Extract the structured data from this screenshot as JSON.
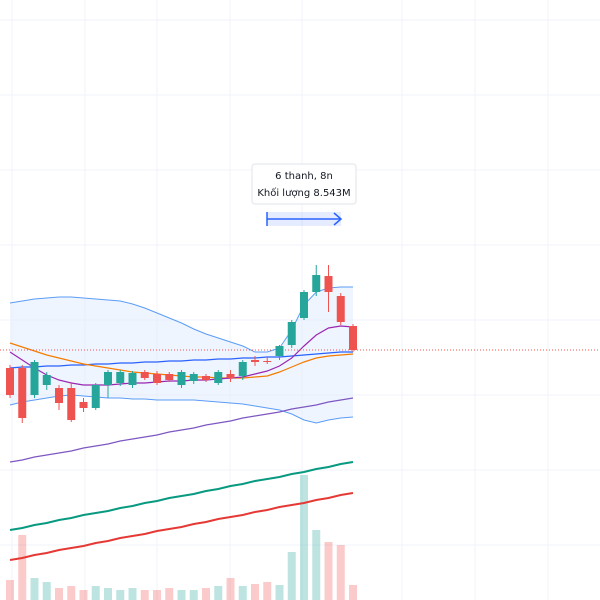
{
  "chart_data": {
    "type": "candlestick",
    "ylim": [
      0,
      600
    ],
    "up_color": "#26a69a",
    "down_color": "#ef5350",
    "open": [
      232,
      232,
      205,
      215,
      212,
      212,
      198,
      192,
      215,
      217,
      215,
      228,
      226,
      226,
      215,
      219,
      224,
      217,
      226,
      224,
      240,
      239,
      244,
      255,
      282,
      308,
      324,
      304,
      274
    ],
    "high": [
      235,
      235,
      240,
      228,
      215,
      218,
      202,
      217,
      230,
      230,
      229,
      230,
      229,
      228,
      230,
      228,
      226,
      230,
      230,
      240,
      244,
      243,
      255,
      280,
      310,
      335,
      335,
      307,
      276
    ],
    "low": [
      202,
      177,
      202,
      210,
      190,
      178,
      188,
      190,
      202,
      214,
      212,
      220,
      215,
      218,
      212,
      216,
      218,
      215,
      218,
      220,
      234,
      236,
      240,
      252,
      280,
      304,
      288,
      275,
      248
    ],
    "close": [
      205,
      182,
      238,
      225,
      197,
      180,
      192,
      215,
      228,
      228,
      227,
      222,
      217,
      220,
      228,
      226,
      220,
      228,
      222,
      238,
      238,
      238,
      254,
      278,
      308,
      325,
      308,
      278,
      250
    ],
    "bands": {
      "color": "#5b9cf6",
      "fill": "#e3efff",
      "upper": [
        297,
        299,
        301,
        302,
        303,
        303,
        302,
        301,
        300,
        299,
        296,
        292,
        287,
        282,
        277,
        271,
        266,
        262,
        258,
        254,
        248,
        248,
        252,
        270,
        295,
        308,
        312,
        313,
        313
      ],
      "lower": [
        195,
        198,
        200,
        202,
        204,
        205,
        204,
        203,
        202,
        202,
        201,
        201,
        200,
        200,
        200,
        200,
        199,
        198,
        197,
        196,
        194,
        192,
        190,
        186,
        180,
        177,
        180,
        182,
        183
      ]
    },
    "lines": [
      {
        "color": "#2962ff",
        "values": [
          232,
          233,
          233,
          234,
          234,
          235,
          235,
          236,
          236,
          237,
          237,
          238,
          238,
          239,
          239,
          240,
          240,
          241,
          241,
          242,
          242,
          243,
          243,
          244,
          245,
          246,
          247,
          248,
          248
        ]
      },
      {
        "color": "#f57c00",
        "values": [
          257,
          253,
          249,
          245,
          242,
          239,
          236,
          234,
          232,
          230,
          228,
          227,
          226,
          225,
          224,
          223,
          223,
          222,
          222,
          222,
          223,
          224,
          228,
          233,
          238,
          242,
          244,
          245,
          246
        ]
      },
      {
        "color": "#9c27b0",
        "values": [
          248,
          240,
          232,
          225,
          220,
          217,
          215,
          215,
          215,
          216,
          217,
          217,
          218,
          219,
          219,
          220,
          220,
          221,
          222,
          223,
          226,
          229,
          234,
          242,
          254,
          265,
          272,
          274,
          273
        ]
      },
      {
        "color": "#7e57c2",
        "values": [
          138,
          140,
          143,
          145,
          147,
          149,
          152,
          154,
          156,
          159,
          161,
          163,
          165,
          168,
          170,
          172,
          175,
          177,
          179,
          182,
          184,
          186,
          188,
          191,
          193,
          195,
          198,
          200,
          202
        ]
      },
      {
        "color": "#089981",
        "values": [
          70,
          72,
          75,
          77,
          80,
          82,
          85,
          87,
          89,
          92,
          94,
          97,
          99,
          102,
          104,
          106,
          109,
          111,
          114,
          116,
          119,
          121,
          123,
          126,
          128,
          131,
          133,
          136,
          138
        ]
      },
      {
        "color": "#e53935",
        "values": [
          40,
          42,
          45,
          47,
          50,
          52,
          54,
          57,
          59,
          62,
          64,
          66,
          69,
          71,
          73,
          76,
          78,
          81,
          83,
          85,
          88,
          90,
          93,
          95,
          97,
          100,
          102,
          105,
          107
        ]
      }
    ],
    "volume": [
      20,
      65,
      22,
      18,
      12,
      14,
      10,
      14,
      12,
      10,
      12,
      10,
      10,
      12,
      10,
      10,
      12,
      14,
      22,
      14,
      16,
      18,
      15,
      48,
      125,
      70,
      58,
      55,
      15
    ],
    "annotation": {
      "title": "6 thanh, 8n",
      "subtitle": "Khối lượng 8.543M"
    }
  }
}
